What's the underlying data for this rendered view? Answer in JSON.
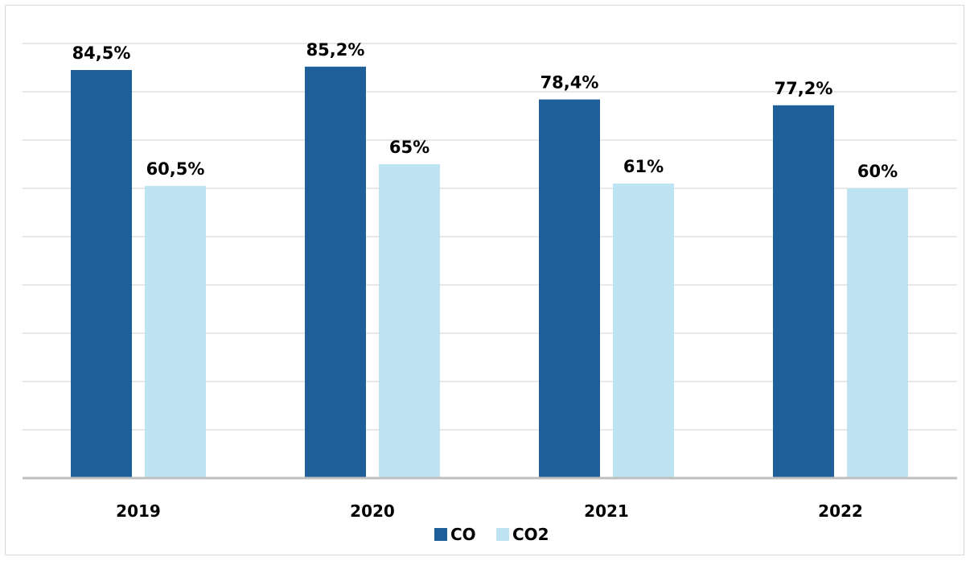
{
  "chart_data": {
    "type": "bar",
    "categories": [
      "2019",
      "2020",
      "2021",
      "2022"
    ],
    "series": [
      {
        "name": "CO",
        "values": [
          84.5,
          85.2,
          78.4,
          77.2
        ],
        "labels": [
          "84,5%",
          "85,2%",
          "78,4%",
          "77,2%"
        ],
        "color": "#1f5f99"
      },
      {
        "name": "CO2",
        "values": [
          60.5,
          65,
          61,
          60
        ],
        "labels": [
          "60,5%",
          "65%",
          "61%",
          "60%"
        ],
        "color": "#bee4f4"
      }
    ],
    "ylim": [
      0,
      100
    ],
    "grid": true,
    "legend": "bottom",
    "gridline_color": "#d9d9d9",
    "axis_color": "#bfbfbf"
  }
}
